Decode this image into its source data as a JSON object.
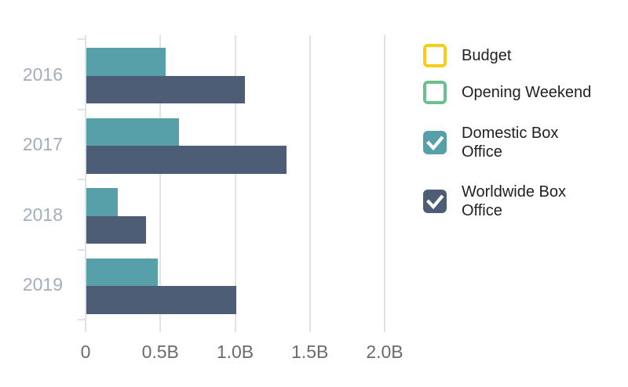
{
  "chart_data": {
    "type": "bar",
    "orientation": "horizontal",
    "title": "",
    "xlabel": "",
    "ylabel": "",
    "categories": [
      "2016",
      "2017",
      "2018",
      "2019"
    ],
    "series": [
      {
        "name": "Budget",
        "label_lines": [
          "Budget"
        ],
        "color": "#f7ce13",
        "checked": false,
        "visible": false,
        "values": []
      },
      {
        "name": "Opening Weekend",
        "label_lines": [
          "Opening Weekend"
        ],
        "color": "#6bc08d",
        "checked": false,
        "visible": false,
        "values": []
      },
      {
        "name": "Domestic Box Office",
        "label_lines": [
          "Domestic Box",
          "Office"
        ],
        "color": "#57a0aa",
        "checked": true,
        "visible": true,
        "values": [
          0.53,
          0.62,
          0.21,
          0.48
        ]
      },
      {
        "name": "Worldwide Box Office",
        "label_lines": [
          "Worldwide Box",
          "Office"
        ],
        "color": "#4e5d76",
        "checked": true,
        "visible": true,
        "values": [
          1.06,
          1.34,
          0.4,
          1.0
        ]
      }
    ],
    "x_axis": {
      "unit_suffix": "B",
      "range": [
        0,
        2.1
      ],
      "ticks": [
        {
          "label": "0",
          "value": 0
        },
        {
          "label": "0.5B",
          "value": 0.5
        },
        {
          "label": "1.0B",
          "value": 1.0
        },
        {
          "label": "1.5B",
          "value": 1.5
        },
        {
          "label": "2.0B",
          "value": 2.0
        }
      ]
    },
    "grid": true,
    "legend_position": "right"
  },
  "colors": {
    "background": "#ffffff",
    "gridline": "#e2e2e2",
    "axis_tick_label": "#6b6b6b",
    "category_label": "#a3aebb",
    "legend_text": "#212121",
    "checkmark": "#ffffff"
  }
}
